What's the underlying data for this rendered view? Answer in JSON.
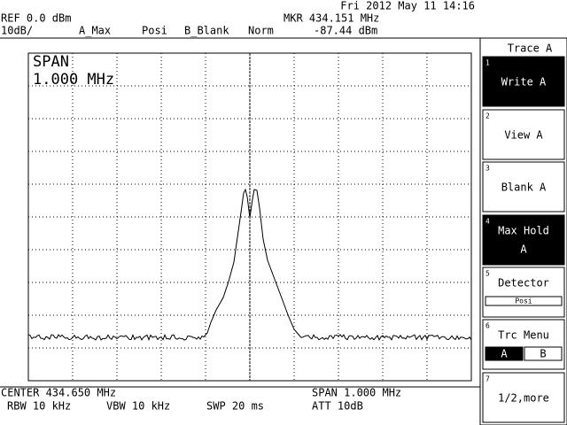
{
  "status": {
    "datetime": "Fri 2012 May 11 14:16",
    "ref": "REF 0.0 dBm",
    "scale": "10dB/",
    "trace_a": "A_Max",
    "detector": "Posi",
    "trace_b": "B_Blank",
    "mode": "Norm",
    "marker_freq": "MKR 434.151 MHz",
    "marker_level": "-87.44 dBm"
  },
  "display": {
    "span_label": "SPAN",
    "span_value": "1.000 MHz"
  },
  "footer": {
    "center": "CENTER 434.650 MHz",
    "span": "SPAN 1.000 MHz",
    "rbw": "RBW 10 kHz",
    "vbw": "VBW 10 kHz",
    "sweep": "SWP 20 ms",
    "attenuation": "ATT 10dB"
  },
  "menu": {
    "title": "Trace A",
    "buttons": [
      {
        "number": "1",
        "label": "Write A"
      },
      {
        "number": "2",
        "label": "View A"
      },
      {
        "number": "3",
        "label": "Blank A"
      },
      {
        "number": "4",
        "label": "Max Hold",
        "sublabel": "A"
      },
      {
        "number": "5",
        "label": "Detector",
        "sublabel": "Posi"
      },
      {
        "number": "6",
        "label": "Trc Menu",
        "options": [
          "A",
          "B"
        ]
      },
      {
        "number": "7",
        "label": "1/2,more"
      }
    ]
  }
}
